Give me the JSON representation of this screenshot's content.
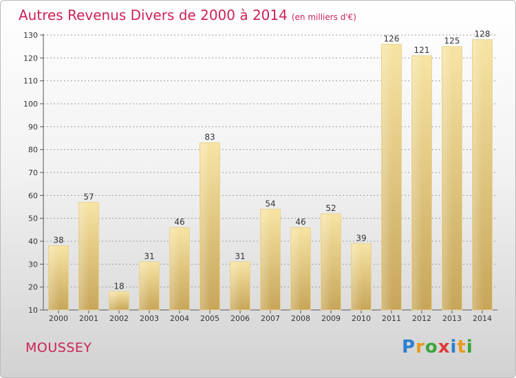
{
  "header": {
    "title": "Autres Revenus Divers de 2000 à 2014",
    "unit": "(en milliers d'€)"
  },
  "footer": {
    "commune": "MOUSSEY",
    "logo_text": "Proxiti"
  },
  "colors": {
    "title": "#cc2255",
    "bar_light": "#f6e2a0",
    "bar_dark": "#c9a95c",
    "grid": "#999999"
  },
  "chart_data": {
    "type": "bar",
    "title": "Autres Revenus Divers de 2000 à 2014",
    "subtitle": "(en milliers d'€)",
    "categories": [
      "2000",
      "2001",
      "2002",
      "2003",
      "2004",
      "2005",
      "2006",
      "2007",
      "2008",
      "2009",
      "2010",
      "2011",
      "2012",
      "2013",
      "2014"
    ],
    "values": [
      38,
      57,
      18,
      31,
      46,
      83,
      31,
      54,
      46,
      52,
      39,
      126,
      121,
      125,
      128
    ],
    "yticks": [
      10,
      20,
      30,
      40,
      50,
      60,
      70,
      80,
      90,
      100,
      110,
      120,
      130
    ],
    "ylim": [
      10,
      130
    ],
    "grid": true,
    "legend": "none"
  }
}
